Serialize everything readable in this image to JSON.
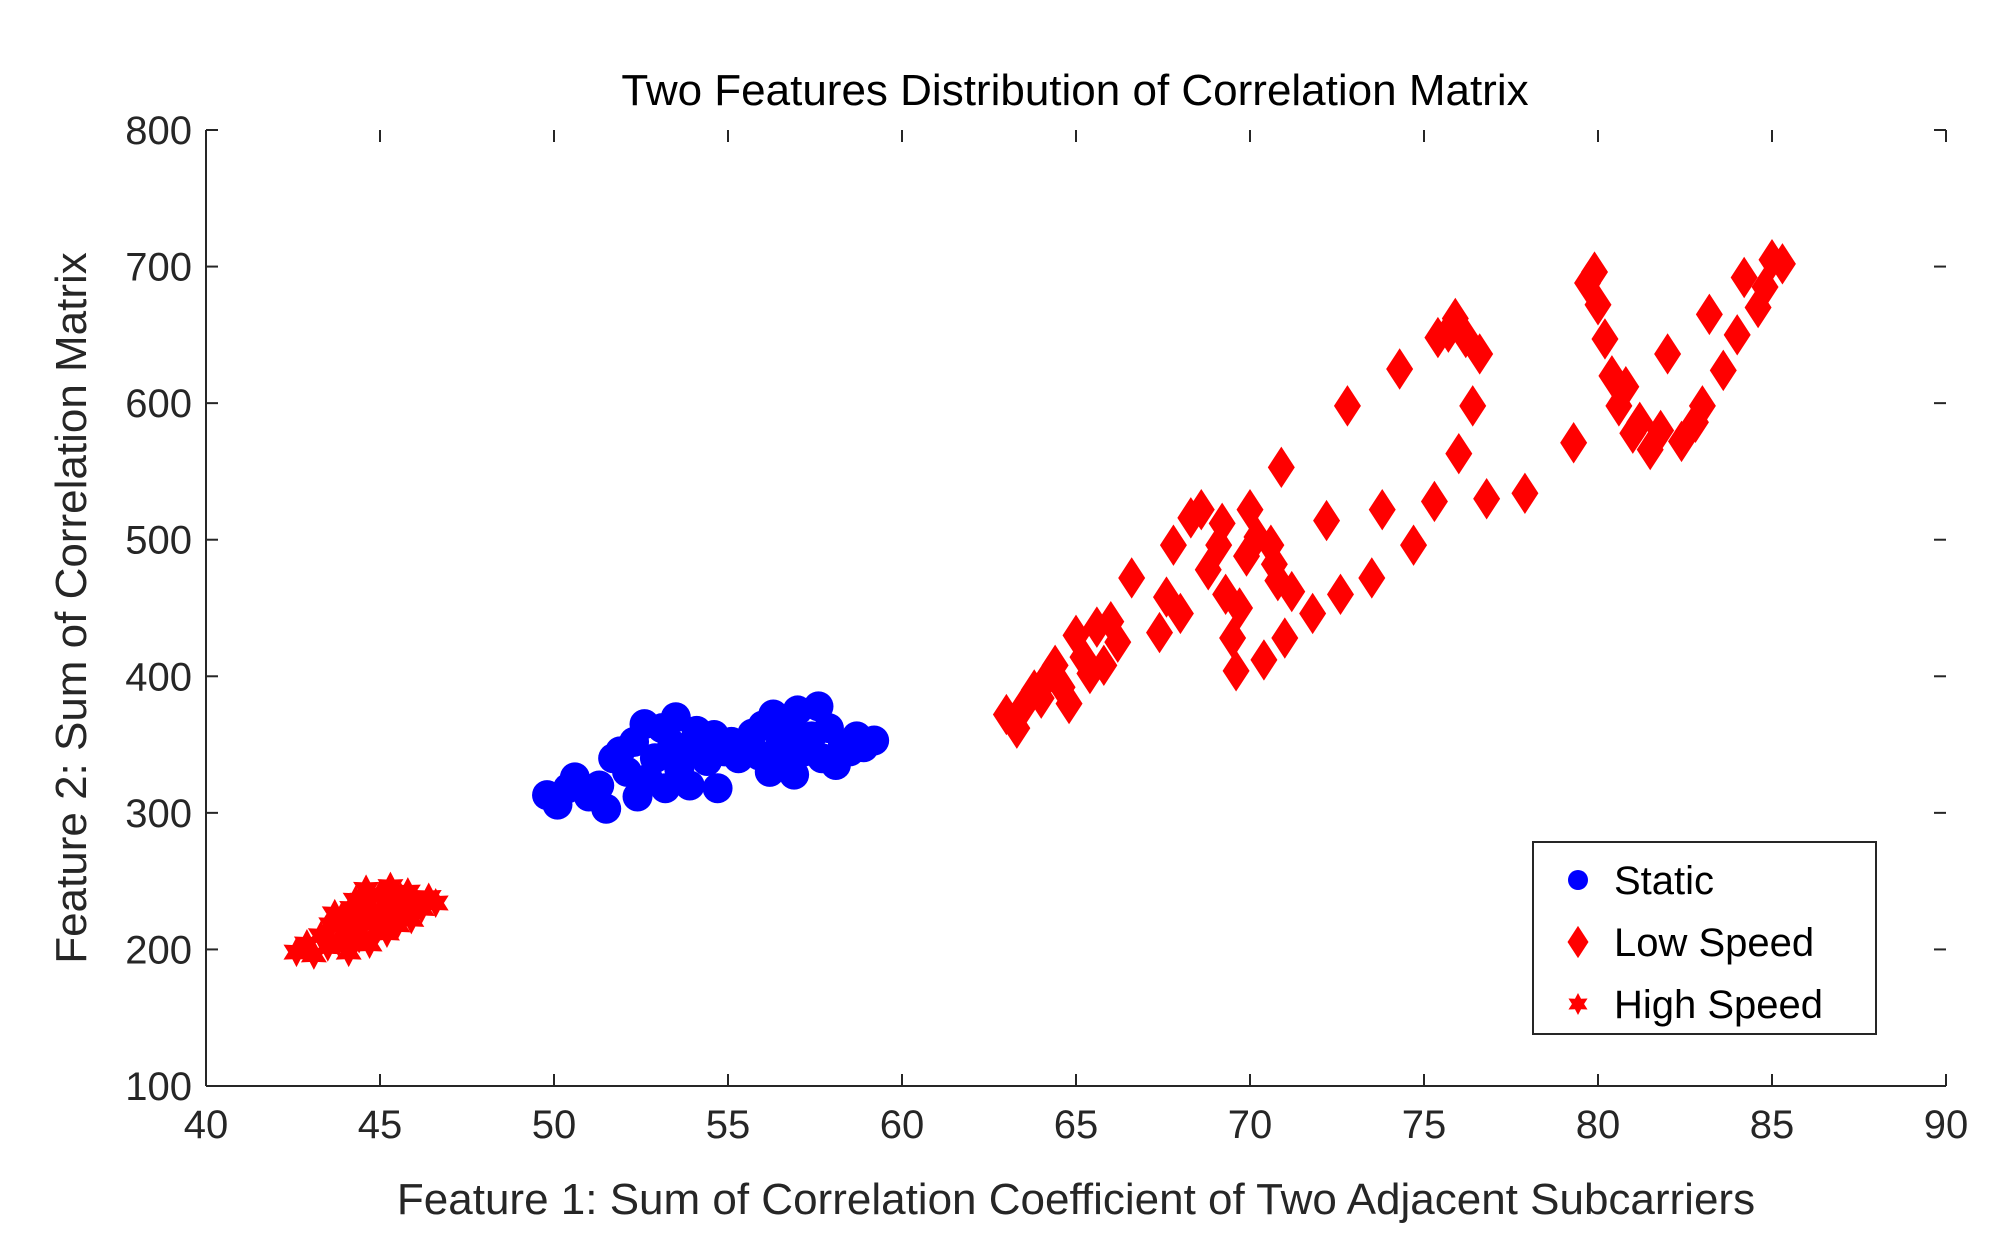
{
  "chart_data": {
    "type": "scatter",
    "title": "Two Features Distribution of Correlation Matrix",
    "xlabel": "Feature 1: Sum of Correlation Coefficient of Two Adjacent Subcarriers",
    "ylabel": "Feature 2: Sum of Correlation Matrix",
    "xlim": [
      40,
      90
    ],
    "ylim": [
      100,
      800
    ],
    "xticks": [
      "40",
      "45",
      "50",
      "55",
      "60",
      "65",
      "70",
      "75",
      "80",
      "85",
      "90"
    ],
    "yticks": [
      "100",
      "200",
      "300",
      "400",
      "500",
      "600",
      "700",
      "800"
    ],
    "grid": false,
    "legend_position": "bottom-right",
    "series": [
      {
        "name": "Static",
        "marker": "circle",
        "color": "#0000ff",
        "points": [
          [
            49.8,
            313
          ],
          [
            50.1,
            306
          ],
          [
            50.4,
            318
          ],
          [
            50.6,
            326
          ],
          [
            51.0,
            312
          ],
          [
            51.3,
            320
          ],
          [
            51.5,
            303
          ],
          [
            51.7,
            340
          ],
          [
            51.9,
            345
          ],
          [
            52.1,
            330
          ],
          [
            52.3,
            352
          ],
          [
            52.4,
            312
          ],
          [
            52.6,
            365
          ],
          [
            52.7,
            325
          ],
          [
            52.9,
            340
          ],
          [
            53.1,
            362
          ],
          [
            53.2,
            318
          ],
          [
            53.4,
            350
          ],
          [
            53.5,
            370
          ],
          [
            53.6,
            332
          ],
          [
            53.8,
            343
          ],
          [
            53.9,
            320
          ],
          [
            54.1,
            360
          ],
          [
            54.2,
            350
          ],
          [
            54.4,
            338
          ],
          [
            54.6,
            357
          ],
          [
            54.7,
            318
          ],
          [
            54.9,
            345
          ],
          [
            55.1,
            352
          ],
          [
            55.3,
            340
          ],
          [
            55.5,
            348
          ],
          [
            55.7,
            358
          ],
          [
            55.9,
            342
          ],
          [
            56.0,
            364
          ],
          [
            56.2,
            330
          ],
          [
            56.3,
            372
          ],
          [
            56.5,
            350
          ],
          [
            56.6,
            336
          ],
          [
            56.8,
            362
          ],
          [
            56.9,
            328
          ],
          [
            57.0,
            375
          ],
          [
            57.2,
            345
          ],
          [
            57.4,
            356
          ],
          [
            57.6,
            378
          ],
          [
            57.7,
            340
          ],
          [
            57.9,
            362
          ],
          [
            58.1,
            335
          ],
          [
            58.3,
            350
          ],
          [
            58.5,
            345
          ],
          [
            58.7,
            356
          ],
          [
            58.9,
            348
          ],
          [
            59.2,
            353
          ]
        ]
      },
      {
        "name": "Low Speed",
        "marker": "diamond",
        "color": "#ff0000",
        "points": [
          [
            63.0,
            372
          ],
          [
            63.3,
            362
          ],
          [
            63.5,
            378
          ],
          [
            63.8,
            390
          ],
          [
            64.0,
            384
          ],
          [
            64.2,
            400
          ],
          [
            64.4,
            408
          ],
          [
            64.6,
            392
          ],
          [
            64.8,
            380
          ],
          [
            65.0,
            430
          ],
          [
            65.2,
            414
          ],
          [
            65.4,
            402
          ],
          [
            65.6,
            436
          ],
          [
            65.8,
            408
          ],
          [
            66.0,
            440
          ],
          [
            66.2,
            425
          ],
          [
            66.6,
            472
          ],
          [
            67.4,
            432
          ],
          [
            67.6,
            458
          ],
          [
            67.8,
            496
          ],
          [
            68.0,
            446
          ],
          [
            68.3,
            516
          ],
          [
            68.6,
            522
          ],
          [
            68.8,
            478
          ],
          [
            69.1,
            496
          ],
          [
            69.2,
            512
          ],
          [
            69.3,
            460
          ],
          [
            69.5,
            428
          ],
          [
            69.6,
            404
          ],
          [
            69.7,
            450
          ],
          [
            69.9,
            488
          ],
          [
            70.0,
            522
          ],
          [
            70.2,
            502
          ],
          [
            70.4,
            412
          ],
          [
            70.6,
            496
          ],
          [
            70.7,
            482
          ],
          [
            70.8,
            470
          ],
          [
            70.9,
            553
          ],
          [
            71.0,
            428
          ],
          [
            71.2,
            462
          ],
          [
            71.8,
            446
          ],
          [
            72.2,
            514
          ],
          [
            72.6,
            460
          ],
          [
            72.8,
            598
          ],
          [
            73.5,
            472
          ],
          [
            73.8,
            522
          ],
          [
            74.3,
            625
          ],
          [
            74.7,
            496
          ],
          [
            75.3,
            528
          ],
          [
            75.4,
            648
          ],
          [
            75.7,
            652
          ],
          [
            75.9,
            662
          ],
          [
            76.0,
            563
          ],
          [
            76.2,
            648
          ],
          [
            76.4,
            598
          ],
          [
            76.6,
            636
          ],
          [
            76.8,
            530
          ],
          [
            77.9,
            534
          ],
          [
            79.3,
            571
          ],
          [
            79.7,
            688
          ],
          [
            79.9,
            696
          ],
          [
            80.0,
            672
          ],
          [
            80.2,
            647
          ],
          [
            80.4,
            620
          ],
          [
            80.6,
            598
          ],
          [
            80.8,
            612
          ],
          [
            81.0,
            578
          ],
          [
            81.2,
            586
          ],
          [
            81.5,
            566
          ],
          [
            81.8,
            580
          ],
          [
            82.0,
            636
          ],
          [
            82.4,
            572
          ],
          [
            82.8,
            586
          ],
          [
            83.0,
            598
          ],
          [
            83.2,
            665
          ],
          [
            83.6,
            624
          ],
          [
            84.0,
            650
          ],
          [
            84.2,
            692
          ],
          [
            84.6,
            670
          ],
          [
            84.8,
            685
          ],
          [
            85.0,
            705
          ],
          [
            85.3,
            702
          ]
        ]
      },
      {
        "name": "High Speed",
        "marker": "hexagram",
        "color": "#ff0000",
        "points": [
          [
            42.6,
            198
          ],
          [
            42.9,
            204
          ],
          [
            43.1,
            196
          ],
          [
            43.3,
            210
          ],
          [
            43.5,
            202
          ],
          [
            43.6,
            218
          ],
          [
            43.8,
            206
          ],
          [
            43.9,
            224
          ],
          [
            44.0,
            212
          ],
          [
            44.1,
            198
          ],
          [
            44.2,
            230
          ],
          [
            44.3,
            216
          ],
          [
            44.4,
            208
          ],
          [
            44.5,
            236
          ],
          [
            44.6,
            222
          ],
          [
            44.7,
            204
          ],
          [
            44.8,
            228
          ],
          [
            44.9,
            214
          ],
          [
            45.0,
            240
          ],
          [
            45.1,
            226
          ],
          [
            45.2,
            212
          ],
          [
            45.3,
            246
          ],
          [
            45.4,
            232
          ],
          [
            45.5,
            218
          ],
          [
            45.6,
            238
          ],
          [
            45.7,
            226
          ],
          [
            45.8,
            242
          ],
          [
            45.9,
            222
          ],
          [
            46.0,
            236
          ],
          [
            46.2,
            230
          ],
          [
            46.4,
            238
          ],
          [
            46.6,
            234
          ],
          [
            44.3,
            236
          ],
          [
            43.7,
            226
          ],
          [
            45.0,
            220
          ],
          [
            44.6,
            244
          ]
        ]
      }
    ]
  }
}
